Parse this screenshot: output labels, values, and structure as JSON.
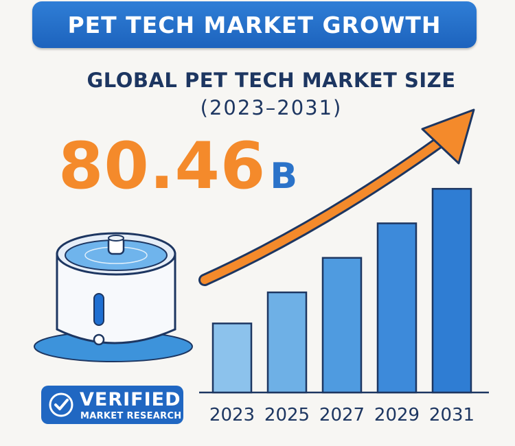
{
  "header": {
    "title": "PET TECH MARKET GROWTH"
  },
  "subtitle": {
    "line1": "GLOBAL PET TECH MARKET SIZE",
    "line2": "(2023–2031)"
  },
  "headline": {
    "value": "80.46",
    "unit": "B"
  },
  "badge": {
    "line1": "VERIFIED",
    "line2": "MARKET RESEARCH"
  },
  "device": {
    "name": "water-fountain"
  },
  "colors": {
    "accent": "#f48a2b",
    "brand": "#2067c2",
    "text": "#1d3661"
  },
  "chart_data": {
    "type": "bar",
    "title": "GLOBAL PET TECH MARKET SIZE (2023–2031)",
    "categories": [
      "2023",
      "2025",
      "2027",
      "2029",
      "2031"
    ],
    "values": [
      1.0,
      1.45,
      1.95,
      2.45,
      2.95
    ],
    "ylim": [
      0,
      3.2
    ],
    "xlabel": "",
    "ylabel": "",
    "trend": "upward-arrow"
  }
}
